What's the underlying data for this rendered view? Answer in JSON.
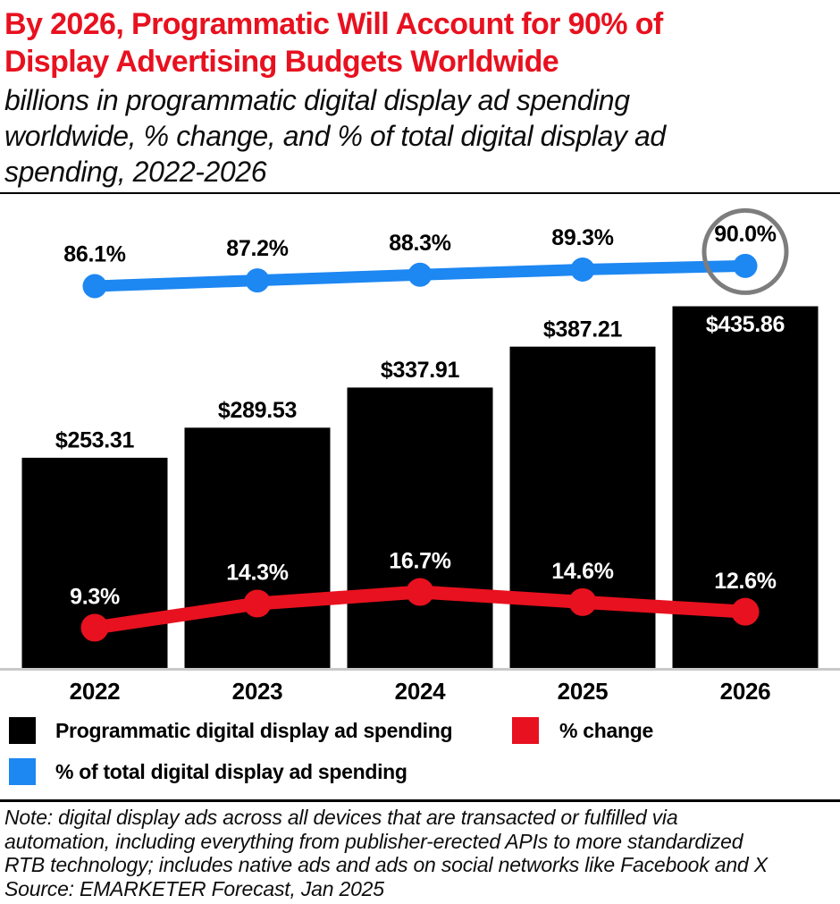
{
  "header": {
    "title_lines": [
      "By 2026, Programmatic Will Account for 90% of",
      "Display Advertising Budgets Worldwide"
    ],
    "subtitle_lines": [
      "billions in programmatic digital display ad spending",
      "worldwide, % change, and % of total digital display ad",
      "spending, 2022-2026"
    ]
  },
  "chart_data": {
    "type": "bar",
    "title": "By 2026, Programmatic Will Account for 90% of Display Advertising Budgets Worldwide",
    "subtitle": "billions in programmatic digital display ad spending worldwide, % change, and % of total digital display ad spending, 2022-2026",
    "categories": [
      "2022",
      "2023",
      "2024",
      "2025",
      "2026"
    ],
    "series": [
      {
        "name": "Programmatic digital display ad spending",
        "type": "bar",
        "unit": "billions of US dollars",
        "values": [
          253.31,
          289.53,
          337.91,
          387.21,
          435.86
        ],
        "labels": [
          "$253.31",
          "$289.53",
          "$337.91",
          "$387.21",
          "$435.86"
        ],
        "color": "#000000"
      },
      {
        "name": "% change",
        "type": "line",
        "unit": "percent",
        "values": [
          9.3,
          14.3,
          16.7,
          14.6,
          12.6
        ],
        "labels": [
          "9.3%",
          "14.3%",
          "16.7%",
          "14.6%",
          "12.6%"
        ],
        "color": "#e8111f"
      },
      {
        "name": "% of total digital display ad spending",
        "type": "line",
        "unit": "percent",
        "values": [
          86.1,
          87.2,
          88.3,
          89.3,
          90.0
        ],
        "labels": [
          "86.1%",
          "87.2%",
          "88.3%",
          "89.3%",
          "90.0%"
        ],
        "color": "#1d87f2"
      }
    ],
    "annotations": [
      {
        "type": "circle-highlight",
        "series": "% of total digital display ad spending",
        "index": 4,
        "label": "90.0%",
        "color": "#7d7d7d"
      }
    ],
    "grid": false,
    "legend_position": "bottom",
    "value_labels_shown": true
  },
  "legend": {
    "items": [
      {
        "label": "Programmatic digital display ad spending",
        "color": "#000000"
      },
      {
        "label": "% change",
        "color": "#e8111f"
      },
      {
        "label": "% of total digital display ad spending",
        "color": "#1d87f2"
      }
    ]
  },
  "footer": {
    "note_lines": [
      "Note: digital display ads across all devices that are transacted or fulfilled via",
      "automation, including everything from publisher-erected APIs to more standardized",
      "RTB technology; includes native ads and ads on social networks like Facebook and X"
    ],
    "source": "Source: EMARKETER Forecast, Jan 2025"
  },
  "colors": {
    "accent_red": "#e8111f",
    "accent_blue": "#1d87f2",
    "bar_black": "#000000",
    "circle_gray": "#7d7d7d",
    "baseline_gray": "#c9c9c9",
    "background": "#ffffff"
  }
}
